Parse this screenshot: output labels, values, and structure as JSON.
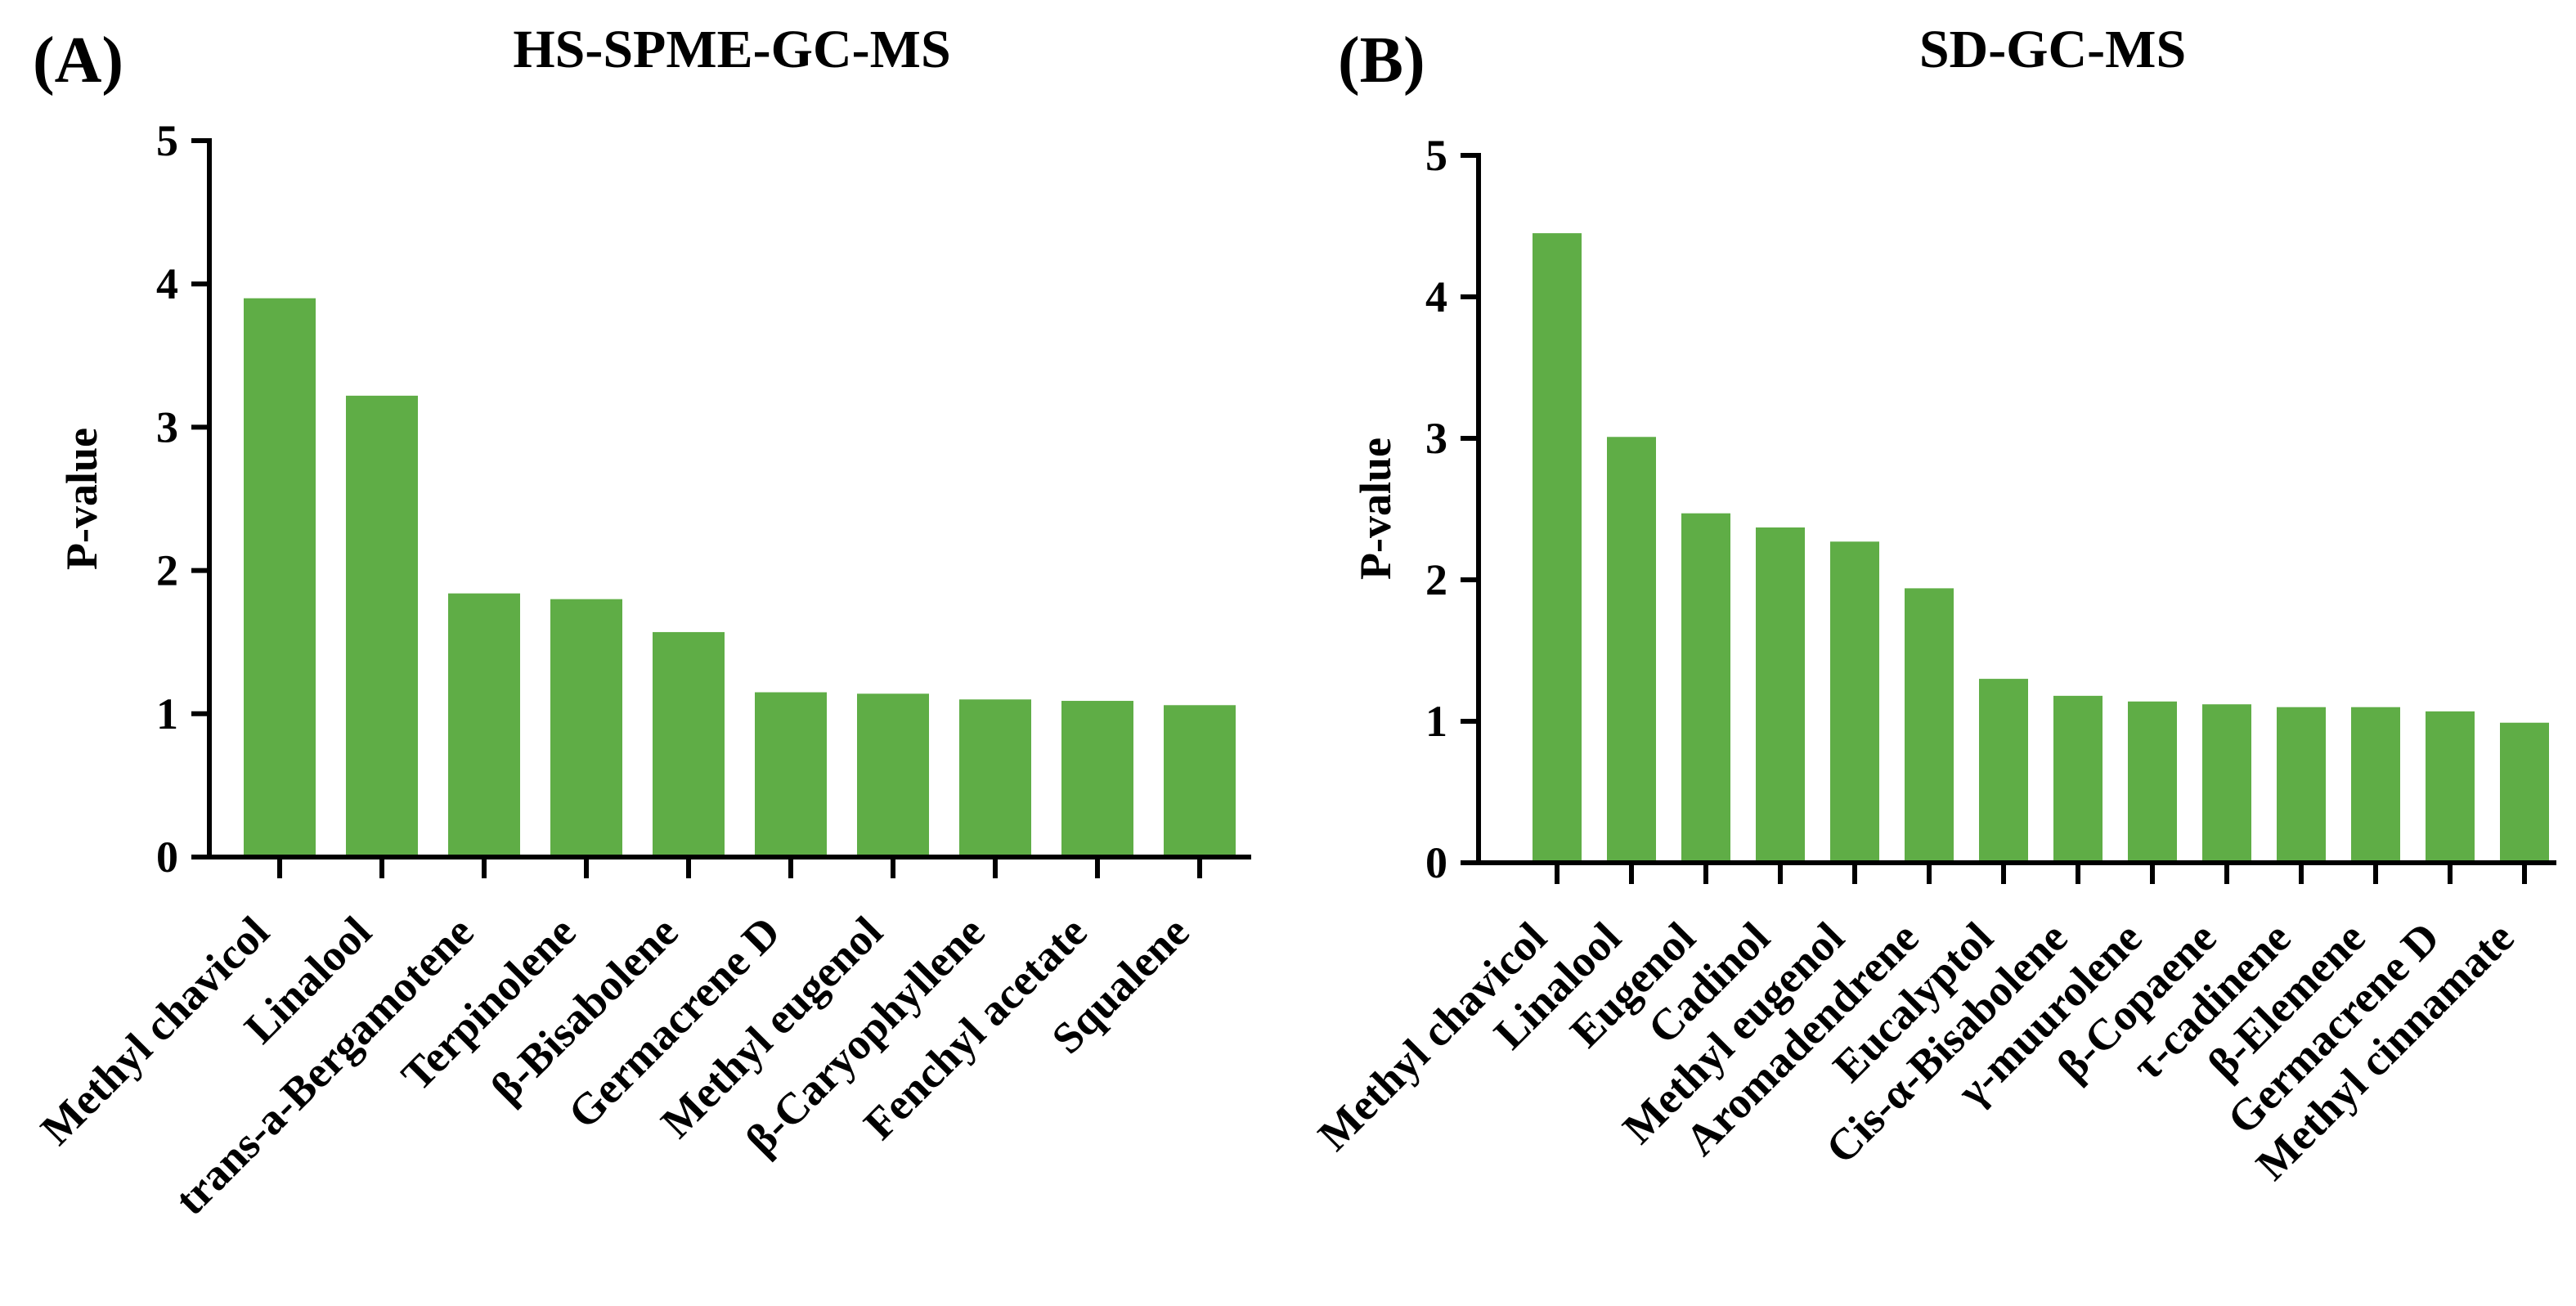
{
  "bar_color": "#5fad46",
  "chart_data": [
    {
      "type": "bar",
      "panel_label": "(A)",
      "title": "HS-SPME-GC-MS",
      "xlabel": "",
      "ylabel": "P-value",
      "ylim": [
        0,
        5
      ],
      "yticks": [
        0,
        1,
        2,
        3,
        4,
        5
      ],
      "grid": false,
      "categories": [
        "Methyl chavicol",
        "Linalool",
        "trans-a-Bergamotene",
        "Terpinolene",
        "β-Bisabolene",
        "Germacrene D",
        "Methyl eugenol",
        "β-Caryophyllene",
        "Fenchyl acetate",
        "Squalene"
      ],
      "values": [
        3.9,
        3.22,
        1.84,
        1.8,
        1.57,
        1.15,
        1.14,
        1.1,
        1.09,
        1.06
      ]
    },
    {
      "type": "bar",
      "panel_label": "(B)",
      "title": "SD-GC-MS",
      "xlabel": "",
      "ylabel": "P-value",
      "ylim": [
        0,
        5
      ],
      "yticks": [
        0,
        1,
        2,
        3,
        4,
        5
      ],
      "grid": false,
      "categories": [
        "Methyl chavicol",
        "Linalool",
        "Eugenol",
        "Cadinol",
        "Methyl eugenol",
        "Aromadendrene",
        "Eucalyptol",
        "Cis-α-Bisabolene",
        "γ-muurolene",
        "β-Copaene",
        "τ-cadinene",
        "β-Elemene",
        "Germacrene D",
        "Methyl cinnamate"
      ],
      "values": [
        4.45,
        3.01,
        2.47,
        2.37,
        2.27,
        1.94,
        1.3,
        1.18,
        1.14,
        1.12,
        1.1,
        1.1,
        1.07,
        0.99
      ]
    }
  ]
}
